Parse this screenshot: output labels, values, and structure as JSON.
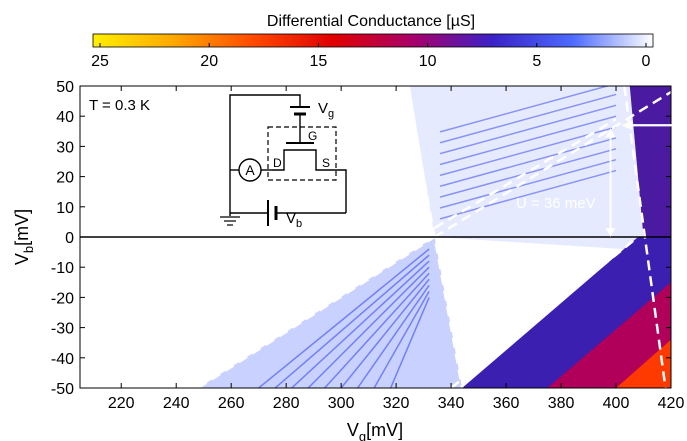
{
  "chart_data": {
    "type": "heatmap",
    "colorbar": {
      "title": "Differential Conductance [µS]",
      "ticks": [
        "25",
        "20",
        "15",
        "10",
        "5",
        "0"
      ],
      "range": [
        25,
        0
      ],
      "stops": [
        "#ffef00",
        "#ffa800",
        "#ff4a00",
        "#e00000",
        "#a8006a",
        "#3a22c8",
        "#4d6bff",
        "#ffffff"
      ]
    },
    "x_axis": {
      "label_main": "V",
      "label_sub": "g",
      "label_unit": "[mV]",
      "range": [
        205,
        420
      ],
      "ticks": [
        220,
        240,
        260,
        280,
        300,
        320,
        340,
        360,
        380,
        400,
        420
      ]
    },
    "y_axis": {
      "label_main": "V",
      "label_sub": "b",
      "label_unit": "[mV]",
      "range": [
        -50,
        50
      ],
      "ticks": [
        50,
        40,
        30,
        20,
        10,
        0,
        -10,
        -20,
        -30,
        -40,
        -50
      ]
    },
    "zero_line": {
      "vb": 0
    },
    "diamond_boundaries": [
      {
        "from": [
          248,
          -50
        ],
        "to": [
          334,
          0
        ]
      },
      {
        "from": [
          334,
          0
        ],
        "to": [
          420,
          48
        ]
      },
      {
        "from": [
          324,
          50
        ],
        "to": [
          344,
          -50
        ]
      },
      {
        "from": [
          340,
          -50
        ],
        "to": [
          408,
          0
        ]
      },
      {
        "from": [
          403,
          50
        ],
        "to": [
          418,
          -50
        ]
      },
      {
        "from": [
          334,
          3
        ],
        "to": [
          400,
          39
        ]
      }
    ],
    "annotations": {
      "temperature": "T = 0.3 K",
      "charging_energy": "U = 36 meV",
      "charging_arrow": {
        "vg": 398,
        "vb_top": 36,
        "vb_bottom": 0
      },
      "pointer_arrow": {
        "vg_from": 415,
        "vg_to": 402,
        "vb": 37
      }
    },
    "inset": {
      "labels": {
        "gate": "G",
        "drain": "D",
        "source": "S",
        "ammeter": "A",
        "vg_main": "V",
        "vg_sub": "g",
        "vb_main": "V",
        "vb_sub": "b"
      }
    }
  }
}
